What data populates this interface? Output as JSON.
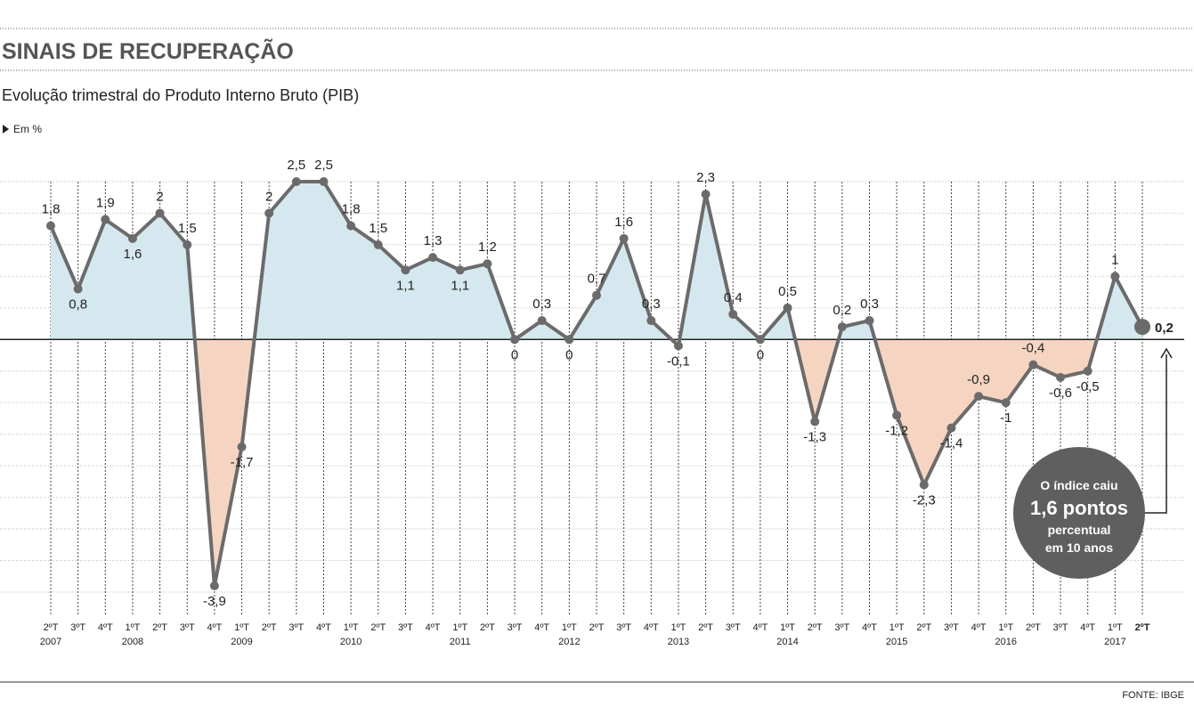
{
  "chart_data": {
    "type": "line",
    "title": "SINAIS DE RECUPERAÇÃO",
    "subtitle": "Evolução trimestral do Produto Interno Bruto (PIB)",
    "unit": "Em %",
    "source": "FONTE: IBGE",
    "annotation": [
      "O índice caiu",
      "1,6 pontos",
      "percentual",
      "em 10 anos"
    ],
    "categories": [
      "2ºT",
      "3ºT",
      "4ºT",
      "1ºT",
      "2ºT",
      "3ºT",
      "4ºT",
      "1ºT",
      "2ºT",
      "3ºT",
      "4ºT",
      "1ºT",
      "2ºT",
      "3ºT",
      "4ºT",
      "1ºT",
      "2ºT",
      "3ºT",
      "4ºT",
      "1ºT",
      "2ºT",
      "3ºT",
      "4ºT",
      "1ºT",
      "2ºT",
      "3ºT",
      "4ºT",
      "1ºT",
      "2ºT",
      "3ºT",
      "4ºT",
      "1ºT",
      "2ºT",
      "3ºT",
      "4ºT",
      "1ºT",
      "2ºT",
      "3ºT",
      "4ºT",
      "1ºT",
      "2ºT"
    ],
    "years": [
      "2007",
      null,
      null,
      "2008",
      null,
      null,
      null,
      "2009",
      null,
      null,
      null,
      "2010",
      null,
      null,
      null,
      "2011",
      null,
      null,
      null,
      "2012",
      null,
      null,
      null,
      "2013",
      null,
      null,
      null,
      "2014",
      null,
      null,
      null,
      "2015",
      null,
      null,
      null,
      "2016",
      null,
      null,
      null,
      "2017",
      null
    ],
    "values": [
      1.8,
      0.8,
      1.9,
      1.6,
      2,
      1.5,
      -3.9,
      -1.7,
      2,
      2.5,
      2.5,
      1.8,
      1.5,
      1.1,
      1.3,
      1.1,
      1.2,
      0,
      0.3,
      0,
      0.7,
      1.6,
      0.3,
      -0.1,
      2.3,
      0.4,
      0,
      0.5,
      -1.3,
      0.2,
      0.3,
      -1.2,
      -2.3,
      -1.4,
      -0.9,
      -1,
      -0.4,
      -0.6,
      -0.5,
      1,
      0.2
    ],
    "value_labels": [
      "1,8",
      "0,8",
      "1,9",
      "1,6",
      "2",
      "1,5",
      "-3,9",
      "-1,7",
      "2",
      "2,5",
      "2,5",
      "1,8",
      "1,5",
      "1,1",
      "1,3",
      "1,1",
      "1,2",
      "0",
      "0,3",
      "0",
      "0,7",
      "1,6",
      "0,3",
      "-0,1",
      "2,3",
      "0,4",
      "0",
      "0,5",
      "-1,3",
      "0,2",
      "0,3",
      "-1,2",
      "-2,3",
      "-1,4",
      "-0,9",
      "-1",
      "-0,4",
      "-0,6",
      "-0,5",
      "1",
      "0,2"
    ],
    "color": "#6b6b6b",
    "positive_fill": "#d6e8ef",
    "negative_fill": "#f5d5c2",
    "ylim": [
      -4,
      2.5
    ],
    "yticks": [
      -4,
      -3.5,
      -3,
      -2.5,
      -2,
      -1.5,
      -1,
      -0.5,
      0,
      0.5,
      1,
      1.5,
      2,
      2.5
    ],
    "grid": true
  }
}
